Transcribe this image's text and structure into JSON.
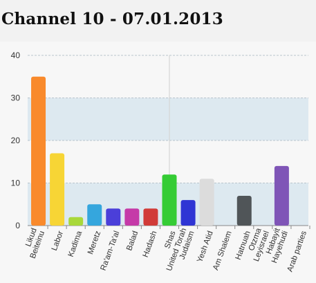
{
  "page": {
    "title": "Channel 10 - 07.01.2013"
  },
  "chart_data": {
    "type": "bar",
    "title": "",
    "xlabel": "",
    "ylabel": "",
    "ylim": [
      0,
      40
    ],
    "yticks": [
      0,
      10,
      20,
      30,
      40
    ],
    "grid": true,
    "legend": "none",
    "band_color": "#dde9f0",
    "categories": [
      "Likud Beiteinu",
      "Labor",
      "Kadima",
      "Meretz",
      "Ra'am-Ta'al",
      "Balad",
      "Hadash",
      "Shas",
      "United Torah Judaism",
      "Yesh Atid",
      "Am Shalem",
      "Hatnuah",
      "Otzma Leyisrael",
      "Habayit Hayehudi",
      "Arab parties"
    ],
    "category_lines": [
      [
        "Likud",
        "Beiteinu"
      ],
      [
        "Labor"
      ],
      [
        "Kadima"
      ],
      [
        "Meretz"
      ],
      [
        "Ra'am-Ta'al"
      ],
      [
        "Balad"
      ],
      [
        "Hadash"
      ],
      [
        "Shas"
      ],
      [
        "United Torah",
        "Judaism"
      ],
      [
        "Yesh Atid"
      ],
      [
        "Am Shalem"
      ],
      [
        "Hatnuah"
      ],
      [
        "Otzma",
        "Leyisrael"
      ],
      [
        "Habayit",
        "Hayehudi"
      ],
      [
        "Arab parties"
      ]
    ],
    "values": [
      35,
      17,
      2,
      5,
      4,
      4,
      4,
      12,
      6,
      11,
      0,
      7,
      0,
      14,
      0
    ],
    "colors": [
      "#f98a2c",
      "#f7d535",
      "#a8d83a",
      "#35a6dd",
      "#4b3fd9",
      "#c53aa8",
      "#d13b38",
      "#35cc35",
      "#2f35d4",
      "#dcdcdc",
      "#cccccc",
      "#505558",
      "#888888",
      "#7f55b7",
      "#888888"
    ]
  }
}
